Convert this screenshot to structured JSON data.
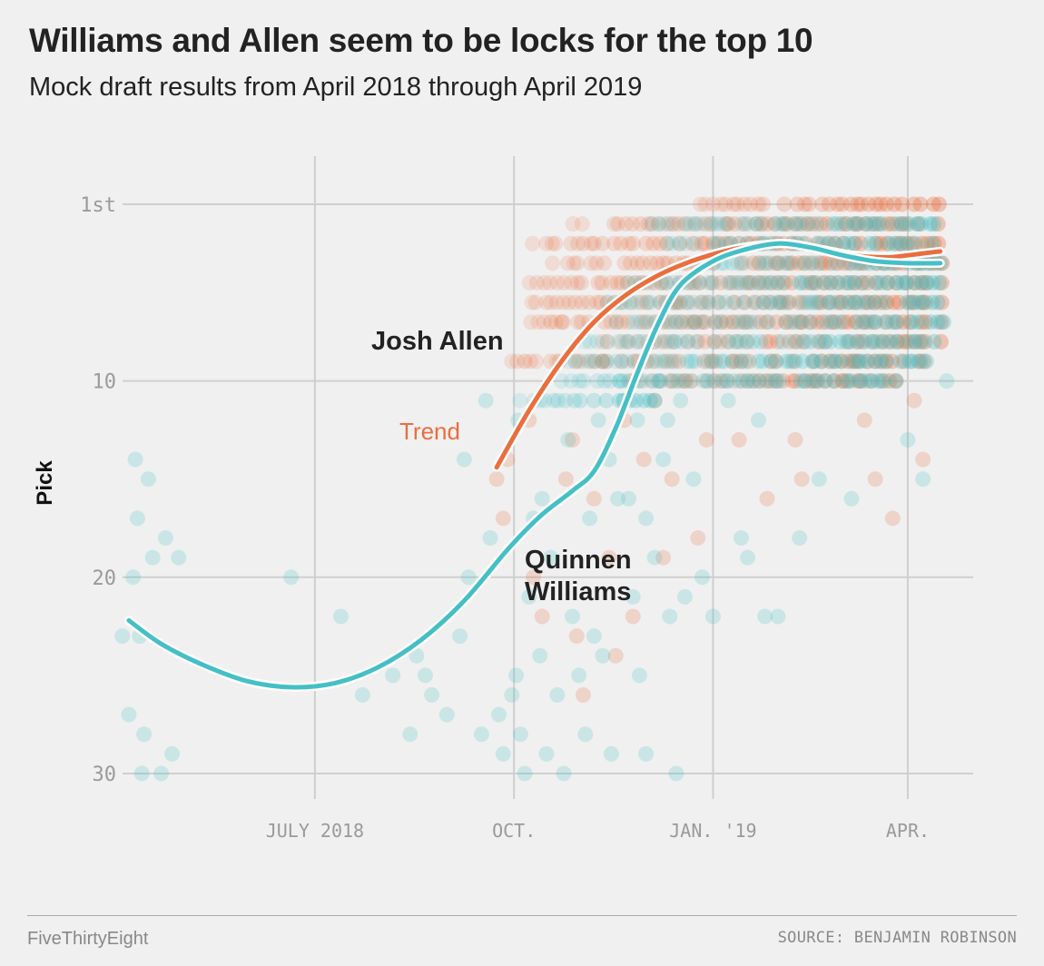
{
  "header": {
    "title": "Williams and Allen seem to be locks for the top 10",
    "subtitle": "Mock draft results from April 2018 through April 2019"
  },
  "footer": {
    "brand": "FiveThirtyEight",
    "source": "SOURCE: BENJAMIN ROBINSON"
  },
  "colors": {
    "allen": "#ea6e3e",
    "williams": "#45bfc6",
    "grid": "#cfcfcf",
    "halo": "#ffffff"
  },
  "chart_data": {
    "type": "scatter",
    "title": "Williams and Allen seem to be locks for the top 10",
    "subtitle": "Mock draft results from April 2018 through April 2019",
    "ylabel": "Pick",
    "xlabel": "",
    "x_unit": "days since 2018-04-01",
    "xlim": [
      0,
      386
    ],
    "ylim": [
      1,
      30
    ],
    "y_inverted": true,
    "grid": true,
    "x_ticks": [
      {
        "value": 91,
        "label": "JULY 2018"
      },
      {
        "value": 183,
        "label": "OCT."
      },
      {
        "value": 275,
        "label": "JAN. '19"
      },
      {
        "value": 365,
        "label": "APR."
      }
    ],
    "y_ticks": [
      {
        "value": 1,
        "label": "1st"
      },
      {
        "value": 10,
        "label": "10"
      },
      {
        "value": 20,
        "label": "20"
      },
      {
        "value": 30,
        "label": "30"
      }
    ],
    "annotations": {
      "allen": "Josh Allen",
      "williams_line1": "Quinnen",
      "williams_line2": "Williams",
      "trend": "Trend"
    },
    "series": [
      {
        "name": "Josh Allen",
        "color": "#ea6e3e",
        "trend": [
          [
            175,
            14.4
          ],
          [
            190,
            11.5
          ],
          [
            205,
            9.0
          ],
          [
            220,
            7.0
          ],
          [
            235,
            5.6
          ],
          [
            250,
            4.6
          ],
          [
            265,
            3.9
          ],
          [
            280,
            3.4
          ],
          [
            295,
            3.1
          ],
          [
            310,
            3.0
          ],
          [
            325,
            3.3
          ],
          [
            340,
            3.6
          ],
          [
            355,
            3.7
          ],
          [
            365,
            3.6
          ],
          [
            372,
            3.5
          ],
          [
            380,
            3.4
          ]
        ],
        "points": [
          [
            175,
            15
          ],
          [
            178,
            17
          ],
          [
            180,
            14
          ],
          [
            188,
            9
          ],
          [
            190,
            12
          ],
          [
            192,
            20
          ],
          [
            196,
            22
          ],
          [
            200,
            7
          ],
          [
            205,
            7
          ],
          [
            207,
            15
          ],
          [
            210,
            13
          ],
          [
            212,
            23
          ],
          [
            215,
            26
          ],
          [
            220,
            16
          ],
          [
            224,
            9
          ],
          [
            227,
            19
          ],
          [
            230,
            24
          ],
          [
            234,
            12
          ],
          [
            238,
            22
          ],
          [
            243,
            14
          ],
          [
            248,
            11
          ],
          [
            252,
            19
          ],
          [
            256,
            15
          ],
          [
            262,
            10
          ],
          [
            268,
            18
          ],
          [
            272,
            13
          ],
          [
            287,
            13
          ],
          [
            300,
            16
          ],
          [
            313,
            13
          ],
          [
            316,
            15
          ],
          [
            323,
            10
          ],
          [
            335,
            10
          ],
          [
            345,
            12
          ],
          [
            350,
            15
          ],
          [
            358,
            17
          ],
          [
            368,
            11
          ],
          [
            372,
            14
          ],
          [
            258,
            6
          ],
          [
            266,
            7
          ],
          [
            292,
            7
          ],
          [
            318,
            6
          ],
          [
            340,
            9
          ]
        ],
        "bands": [
          {
            "pick": 1,
            "from": 268,
            "to": 380
          },
          {
            "pick": 2,
            "from": 210,
            "to": 380
          },
          {
            "pick": 3,
            "from": 190,
            "to": 380
          },
          {
            "pick": 4,
            "from": 200,
            "to": 380
          },
          {
            "pick": 5,
            "from": 190,
            "to": 380
          },
          {
            "pick": 6,
            "from": 190,
            "to": 380
          },
          {
            "pick": 7,
            "from": 190,
            "to": 380
          },
          {
            "pick": 8,
            "from": 220,
            "to": 380
          },
          {
            "pick": 9,
            "from": 180,
            "to": 375
          },
          {
            "pick": 10,
            "from": 235,
            "to": 360
          }
        ]
      },
      {
        "name": "Quinnen Williams",
        "color": "#45bfc6",
        "trend": [
          [
            5,
            22.2
          ],
          [
            20,
            23.4
          ],
          [
            40,
            24.5
          ],
          [
            60,
            25.3
          ],
          [
            80,
            25.6
          ],
          [
            100,
            25.4
          ],
          [
            120,
            24.6
          ],
          [
            140,
            23.2
          ],
          [
            160,
            21.2
          ],
          [
            180,
            18.6
          ],
          [
            195,
            16.9
          ],
          [
            210,
            15.6
          ],
          [
            220,
            14.6
          ],
          [
            230,
            12.4
          ],
          [
            240,
            9.6
          ],
          [
            250,
            7.0
          ],
          [
            260,
            5.1
          ],
          [
            275,
            3.9
          ],
          [
            290,
            3.3
          ],
          [
            305,
            3.0
          ],
          [
            320,
            3.2
          ],
          [
            335,
            3.6
          ],
          [
            350,
            3.9
          ],
          [
            365,
            4.0
          ],
          [
            380,
            4.0
          ]
        ],
        "points": [
          [
            2,
            23
          ],
          [
            5,
            27
          ],
          [
            7,
            20
          ],
          [
            8,
            14
          ],
          [
            9,
            17
          ],
          [
            10,
            23
          ],
          [
            11,
            30
          ],
          [
            12,
            28
          ],
          [
            14,
            15
          ],
          [
            16,
            19
          ],
          [
            20,
            30
          ],
          [
            22,
            18
          ],
          [
            25,
            29
          ],
          [
            28,
            19
          ],
          [
            80,
            20
          ],
          [
            103,
            22
          ],
          [
            113,
            26
          ],
          [
            127,
            25
          ],
          [
            135,
            28
          ],
          [
            138,
            24
          ],
          [
            142,
            25
          ],
          [
            145,
            26
          ],
          [
            152,
            27
          ],
          [
            158,
            23
          ],
          [
            162,
            20
          ],
          [
            168,
            28
          ],
          [
            172,
            18
          ],
          [
            176,
            27
          ],
          [
            178,
            29
          ],
          [
            182,
            26
          ],
          [
            184,
            25
          ],
          [
            186,
            28
          ],
          [
            188,
            30
          ],
          [
            190,
            21
          ],
          [
            192,
            17
          ],
          [
            195,
            24
          ],
          [
            198,
            29
          ],
          [
            200,
            19
          ],
          [
            203,
            26
          ],
          [
            206,
            30
          ],
          [
            210,
            22
          ],
          [
            213,
            25
          ],
          [
            216,
            28
          ],
          [
            220,
            23
          ],
          [
            224,
            24
          ],
          [
            228,
            29
          ],
          [
            231,
            16
          ],
          [
            234,
            11
          ],
          [
            238,
            21
          ],
          [
            241,
            25
          ],
          [
            244,
            29
          ],
          [
            248,
            19
          ],
          [
            252,
            14
          ],
          [
            255,
            22
          ],
          [
            258,
            30
          ],
          [
            262,
            21
          ],
          [
            266,
            15
          ],
          [
            270,
            20
          ],
          [
            275,
            22
          ],
          [
            282,
            11
          ],
          [
            288,
            18
          ],
          [
            291,
            19
          ],
          [
            299,
            22
          ],
          [
            305,
            22
          ],
          [
            315,
            18
          ],
          [
            324,
            15
          ],
          [
            339,
            16
          ],
          [
            365,
            13
          ],
          [
            372,
            15
          ],
          [
            383,
            10
          ],
          [
            160,
            14
          ],
          [
            170,
            11
          ],
          [
            185,
            12
          ],
          [
            196,
            16
          ],
          [
            208,
            13
          ],
          [
            218,
            17
          ],
          [
            222,
            12
          ],
          [
            227,
            14
          ],
          [
            232,
            10
          ],
          [
            236,
            16
          ],
          [
            240,
            12
          ],
          [
            244,
            17
          ],
          [
            250,
            10
          ],
          [
            254,
            12
          ],
          [
            260,
            11
          ],
          [
            265,
            9
          ],
          [
            296,
            12
          ]
        ],
        "bands": [
          {
            "pick": 2,
            "from": 245,
            "to": 380
          },
          {
            "pick": 3,
            "from": 250,
            "to": 380
          },
          {
            "pick": 4,
            "from": 265,
            "to": 380
          },
          {
            "pick": 5,
            "from": 235,
            "to": 380
          },
          {
            "pick": 6,
            "from": 225,
            "to": 380
          },
          {
            "pick": 7,
            "from": 230,
            "to": 380
          },
          {
            "pick": 8,
            "from": 215,
            "to": 380
          },
          {
            "pick": 9,
            "from": 205,
            "to": 375
          },
          {
            "pick": 10,
            "from": 200,
            "to": 360
          },
          {
            "pick": 11,
            "from": 185,
            "to": 255
          }
        ]
      }
    ]
  }
}
